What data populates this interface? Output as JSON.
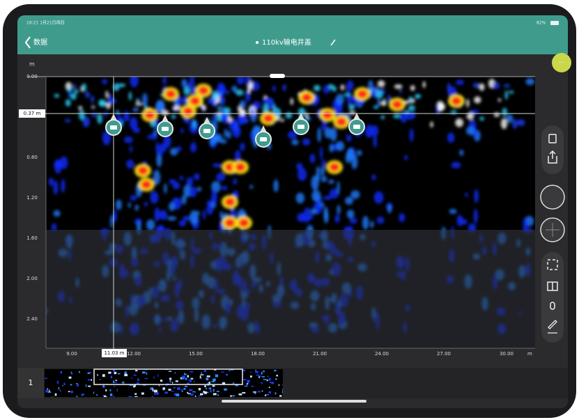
{
  "status_bar": {
    "time": "16:21 1月21日周四",
    "battery": "82%"
  },
  "nav": {
    "back": "数据",
    "title": "110kv输电井盖"
  },
  "radargram": {
    "depth_unit": "m",
    "depth_ticks": [
      "0.00",
      "0.80",
      "1.20",
      "1.60",
      "2.00",
      "2.40"
    ],
    "cursor_depth": "0.37 m",
    "distance_ticks": [
      "9.00",
      "12.00",
      "15.00",
      "18.00",
      "21.00",
      "24.00",
      "27.00",
      "30.00"
    ],
    "distance_unit": "m",
    "cursor_distance": "11.03 m"
  },
  "track": {
    "number": "1"
  }
}
